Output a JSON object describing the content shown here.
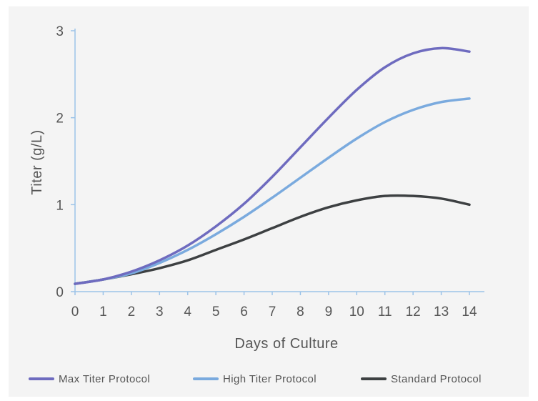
{
  "chart_data": {
    "type": "line",
    "xlabel": "Days of Culture",
    "ylabel": "Titer (g/L)",
    "xlim": [
      0,
      14
    ],
    "ylim": [
      0,
      3
    ],
    "x_ticks": [
      "0",
      "1",
      "2",
      "3",
      "4",
      "5",
      "6",
      "7",
      "8",
      "9",
      "10",
      "11",
      "12",
      "13",
      "14"
    ],
    "y_ticks": [
      "0",
      "1",
      "2",
      "3"
    ],
    "grid": false,
    "legend_position": "bottom",
    "x": [
      0,
      1,
      2,
      3,
      4,
      5,
      6,
      7,
      8,
      9,
      10,
      11,
      12,
      13,
      14
    ],
    "series": [
      {
        "name": "Max Titer Protocol",
        "color": "#6e6bbf",
        "values": [
          0.09,
          0.14,
          0.23,
          0.36,
          0.53,
          0.75,
          1.01,
          1.32,
          1.66,
          2.0,
          2.32,
          2.58,
          2.74,
          2.8,
          2.76
        ]
      },
      {
        "name": "High Titer Protocol",
        "color": "#7aaade",
        "values": [
          0.09,
          0.14,
          0.21,
          0.33,
          0.48,
          0.66,
          0.86,
          1.08,
          1.31,
          1.54,
          1.76,
          1.95,
          2.09,
          2.18,
          2.22
        ]
      },
      {
        "name": "Standard Protocol",
        "color": "#3d4042",
        "values": [
          0.09,
          0.14,
          0.2,
          0.27,
          0.36,
          0.48,
          0.6,
          0.73,
          0.86,
          0.97,
          1.05,
          1.1,
          1.1,
          1.07,
          1.0
        ]
      }
    ]
  }
}
